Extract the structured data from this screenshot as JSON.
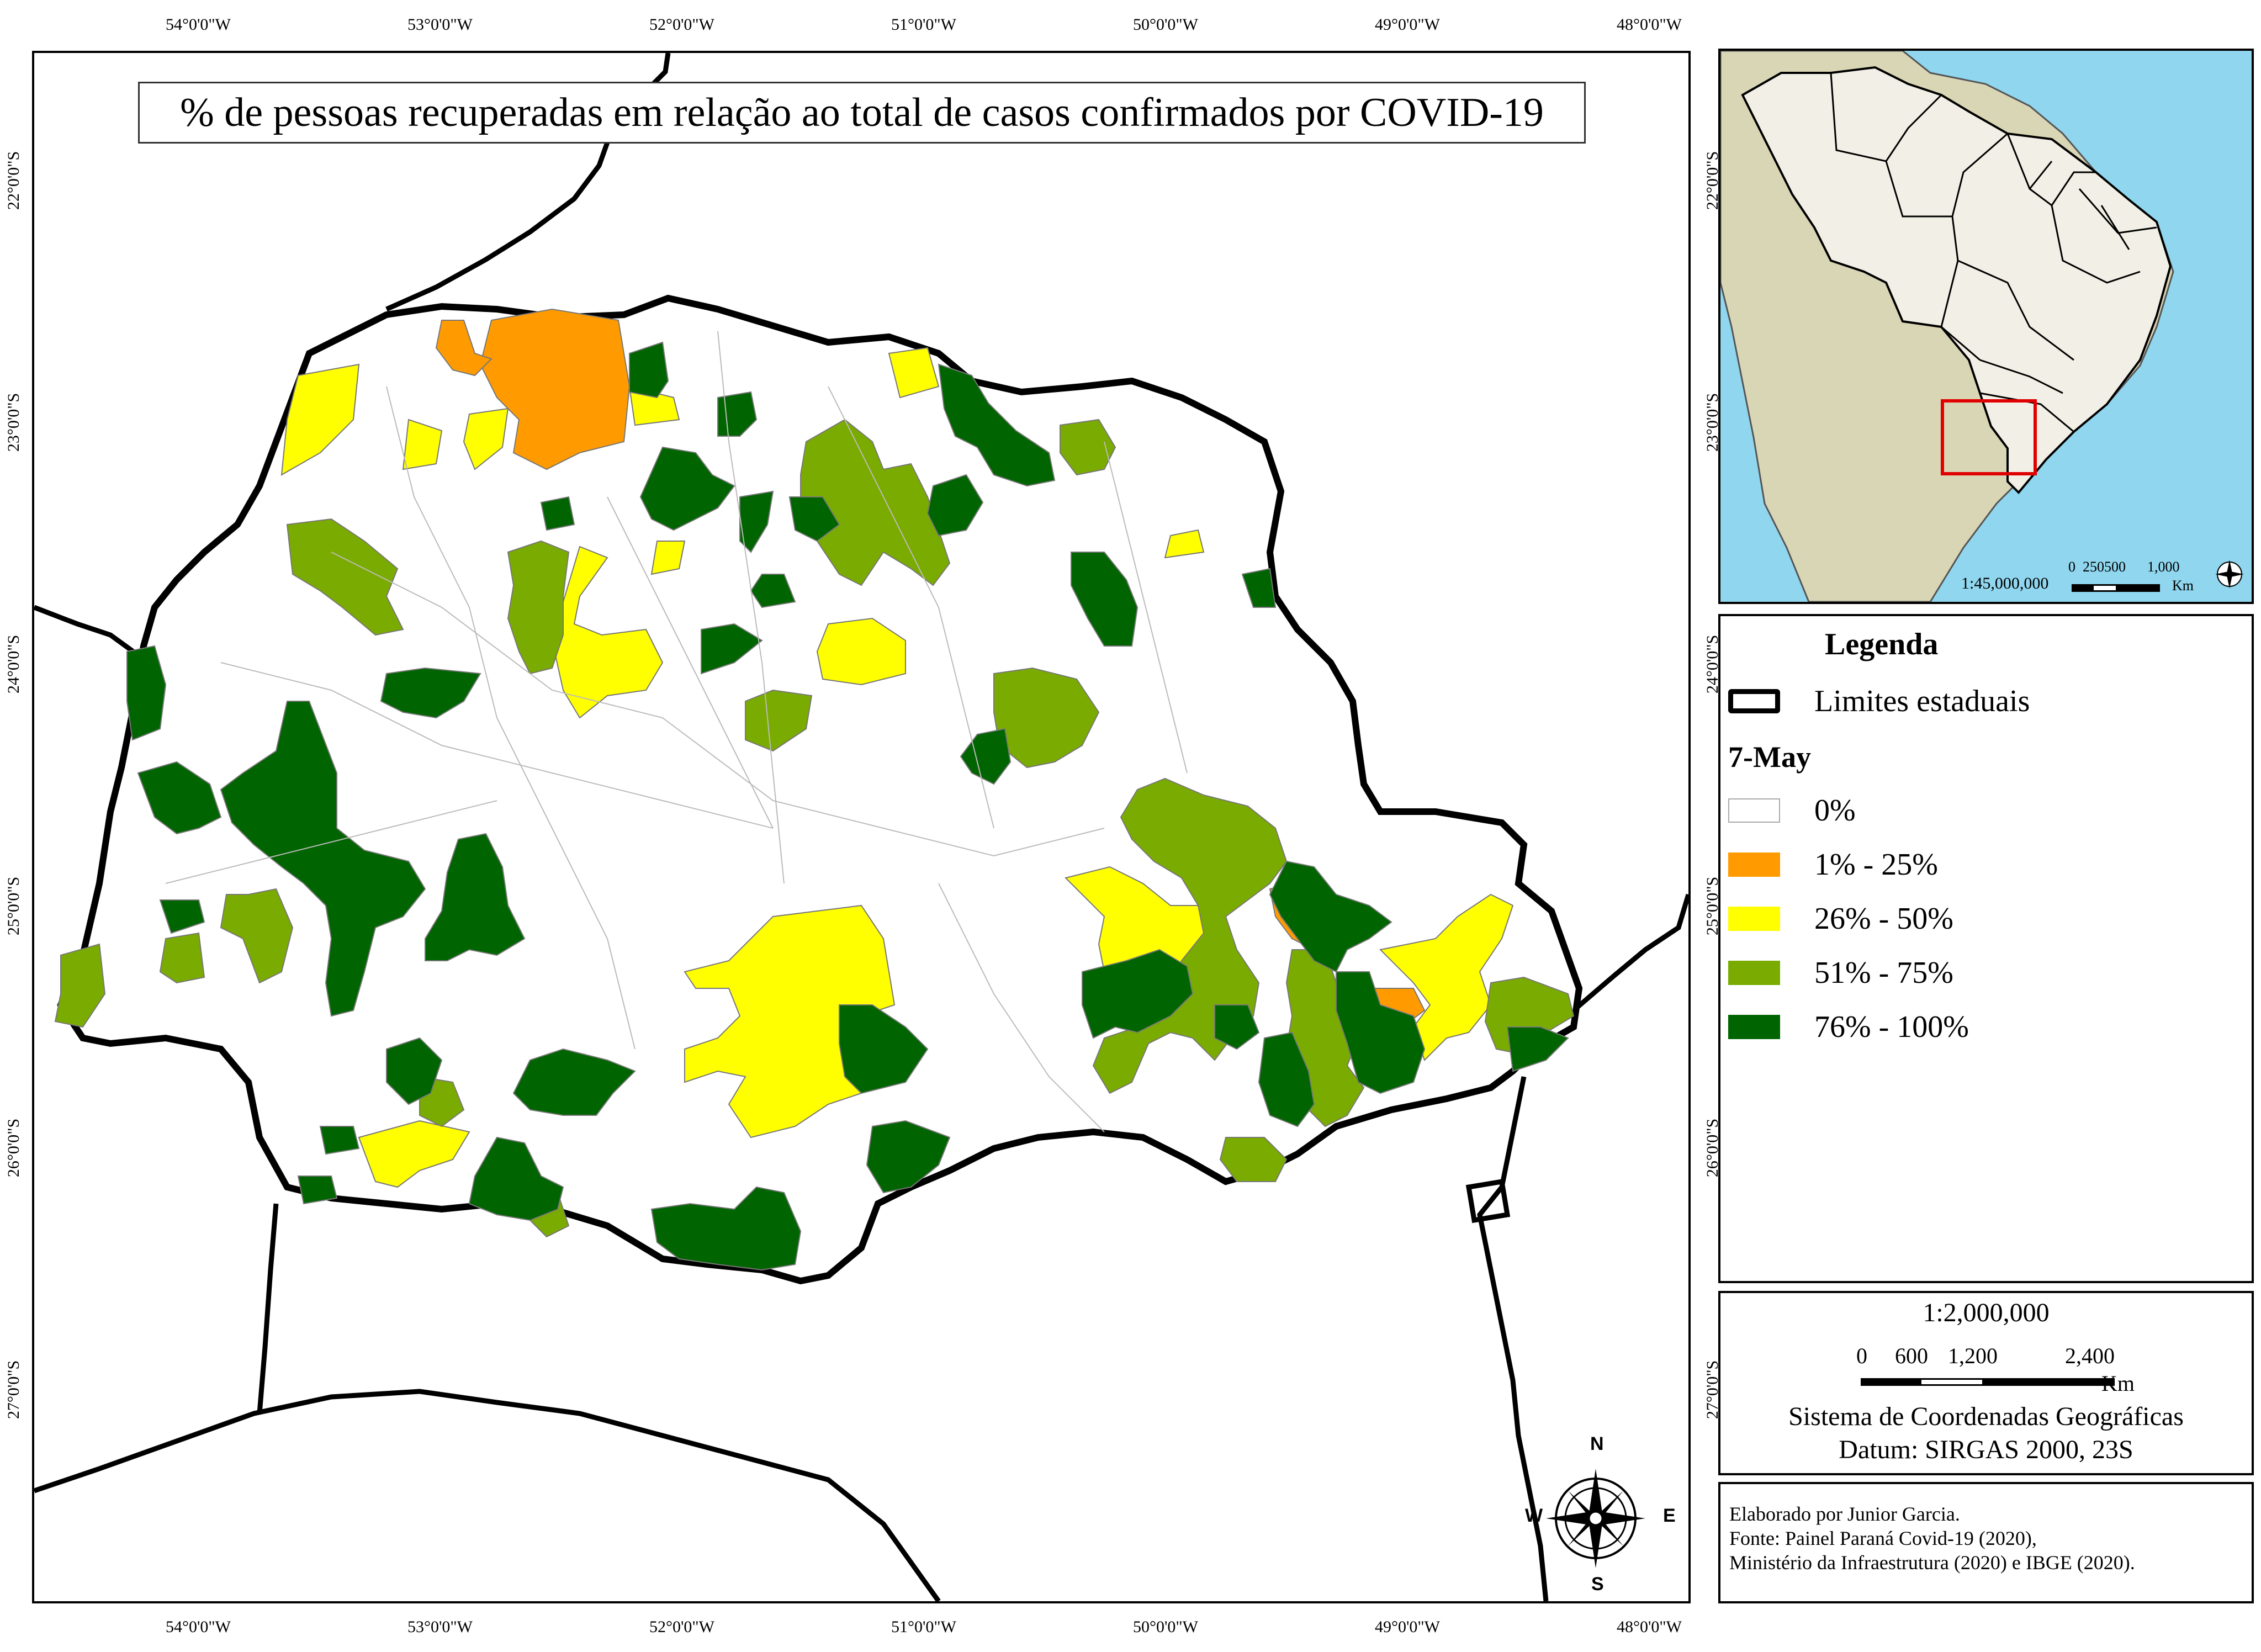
{
  "title": "% de pessoas recuperadas em relação ao total de casos confirmados por COVID-19",
  "lon_labels": [
    "54°0'0\"W",
    "53°0'0\"W",
    "52°0'0\"W",
    "51°0'0\"W",
    "50°0'0\"W",
    "49°0'0\"W",
    "48°0'0\"W"
  ],
  "lat_labels": [
    "22°0'0\"S",
    "23°0'0\"S",
    "24°0'0\"S",
    "25°0'0\"S",
    "26°0'0\"S",
    "27°0'0\"S"
  ],
  "inset": {
    "scale_label": "1:45,000,000",
    "scale_ticks": "0  250500      1,000",
    "scale_unit": "Km"
  },
  "legend": {
    "title": "Legenda",
    "boundary_label": "Limites estaduais",
    "date": "7-May",
    "classes": [
      {
        "label": "0%",
        "color": "#ffffff"
      },
      {
        "label": "1% - 25%",
        "color": "#ff9b00"
      },
      {
        "label": "26% - 50%",
        "color": "#ffff00"
      },
      {
        "label": "51% - 75%",
        "color": "#7aab00"
      },
      {
        "label": "76% - 100%",
        "color": "#006400"
      }
    ]
  },
  "scale": {
    "ratio": "1:2,000,000",
    "ticks": [
      "0",
      "600",
      "1,200",
      "2,400"
    ],
    "unit": "Km",
    "crs": "Sistema de Coordenadas Geográficas",
    "datum": "Datum: SIRGAS 2000, 23S"
  },
  "credits": {
    "line1": "Elaborado por Junior Garcia.",
    "line2": "Fonte: Painel Paraná Covid-19 (2020),",
    "line3": "Ministério da Infraestrutura (2020) e IBGE (2020)."
  },
  "north_arrow": {
    "n": "N",
    "s": "S",
    "e": "E",
    "w": "W"
  },
  "colors": {
    "ocean": "#8fd6ee",
    "land_other": "#d9d6b5",
    "brazil": "#f2f0e6",
    "highlight_box": "#e00000"
  }
}
